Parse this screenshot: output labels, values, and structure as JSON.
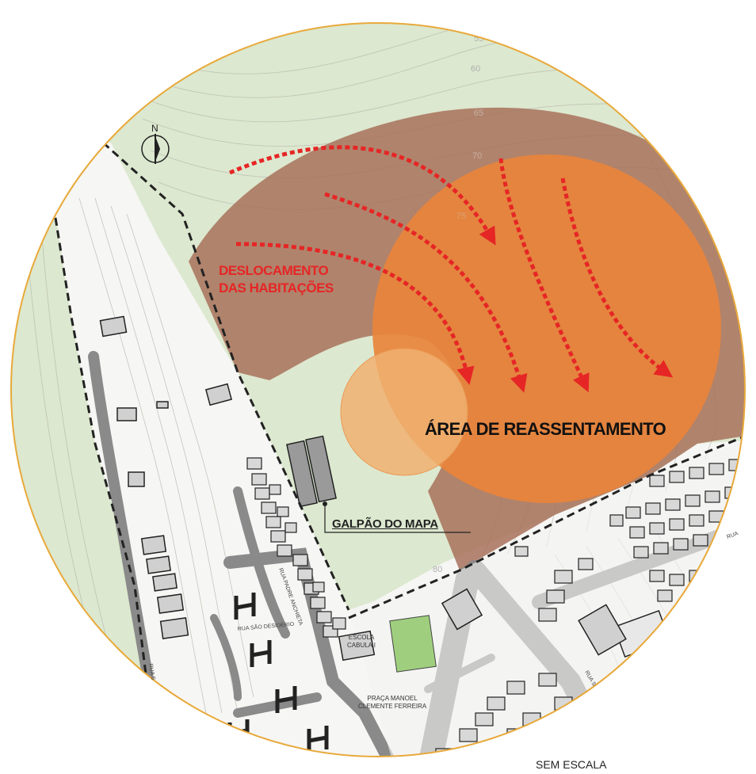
{
  "labels": {
    "displacement_line1": "DESLOCAMENTO",
    "displacement_line2": "DAS HABITAÇÕES",
    "resettlement_area": "ÁREA DE REASSENTAMENTO",
    "warehouse": "GALPÃO DO MAPA",
    "school_line1": "ESCOLA",
    "school_line2": "CABULA I",
    "plaza_line1": "PRAÇA MANOEL",
    "plaza_line2": "CLEMENTE FERREIRA",
    "scale": "SEM ESCALA",
    "north": "N"
  },
  "streets": {
    "sao_desiderio": "RUA SÃO DESIDÉRIO",
    "padre_anchieta": "RUA PADRE ANCHIETA",
    "left_edge": "RUA S",
    "right_upper": "RUA",
    "right_lower": "RUA S"
  },
  "contours": [
    "55",
    "60",
    "65",
    "70",
    "75",
    "80"
  ],
  "colors": {
    "frame": "#e8a93a",
    "vegetation": "#dce8cf",
    "displacement_zone": "#a8715a",
    "resettlement_zone": "#e8843c",
    "arrows": "#e62525",
    "roads": "#8a8a8a",
    "plaza": "#9fcf7e"
  }
}
